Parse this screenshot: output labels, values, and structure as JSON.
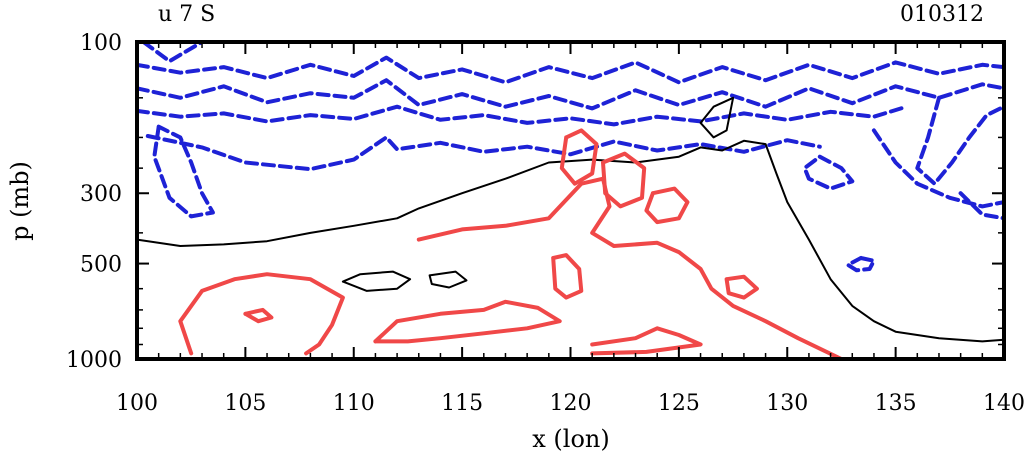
{
  "header": {
    "left_title": "u 7 S",
    "right_title": "010312"
  },
  "chart_data": {
    "type": "contour",
    "xlabel": "x (lon)",
    "ylabel": "p (mb)",
    "xlim": [
      100,
      140
    ],
    "x_ticks": [
      100,
      105,
      110,
      115,
      120,
      125,
      130,
      135,
      140
    ],
    "y_ticks": [
      100,
      300,
      500,
      1000
    ],
    "grid": false,
    "colors": {
      "positive": "#f04848",
      "negative": "#1e22d6",
      "zero": "#000000"
    },
    "contours": [
      {
        "kind": "negative",
        "points": [
          [
            100.3,
            100
          ],
          [
            101.5,
            115
          ],
          [
            103,
            100
          ]
        ]
      },
      {
        "kind": "negative",
        "points": [
          [
            100,
            118
          ],
          [
            102,
            125
          ],
          [
            104,
            120
          ],
          [
            106,
            130
          ],
          [
            108,
            118
          ],
          [
            110,
            128
          ],
          [
            111.5,
            112
          ],
          [
            113,
            130
          ],
          [
            115,
            122
          ],
          [
            117,
            134
          ],
          [
            119,
            120
          ],
          [
            121,
            130
          ],
          [
            123,
            116
          ],
          [
            125,
            134
          ],
          [
            127,
            120
          ],
          [
            129,
            132
          ],
          [
            131,
            118
          ],
          [
            133,
            130
          ],
          [
            135,
            116
          ],
          [
            137,
            126
          ],
          [
            139,
            118
          ],
          [
            140,
            120
          ]
        ]
      },
      {
        "kind": "negative",
        "points": [
          [
            100,
            140
          ],
          [
            102,
            150
          ],
          [
            104,
            138
          ],
          [
            106,
            155
          ],
          [
            108,
            145
          ],
          [
            110,
            150
          ],
          [
            111.5,
            132
          ],
          [
            113,
            158
          ],
          [
            115,
            146
          ],
          [
            117,
            160
          ],
          [
            119,
            148
          ],
          [
            121,
            162
          ],
          [
            123,
            142
          ],
          [
            125,
            158
          ],
          [
            127,
            144
          ],
          [
            129,
            160
          ],
          [
            131,
            140
          ],
          [
            133,
            156
          ],
          [
            135,
            138
          ],
          [
            137,
            150
          ],
          [
            139,
            136
          ],
          [
            140,
            140
          ]
        ]
      },
      {
        "kind": "negative",
        "points": [
          [
            100,
            165
          ],
          [
            102,
            172
          ],
          [
            104,
            168
          ],
          [
            106,
            178
          ],
          [
            108,
            170
          ],
          [
            110,
            175
          ],
          [
            112,
            160
          ],
          [
            114,
            176
          ],
          [
            116,
            170
          ],
          [
            118,
            180
          ],
          [
            120,
            174
          ],
          [
            122,
            182
          ],
          [
            124,
            172
          ],
          [
            126,
            178
          ],
          [
            128,
            168
          ],
          [
            130,
            176
          ],
          [
            132,
            166
          ],
          [
            134,
            172
          ],
          [
            135.5,
            160
          ]
        ]
      },
      {
        "kind": "negative",
        "points": [
          [
            101,
            185
          ],
          [
            100.8,
            230
          ],
          [
            101.5,
            310
          ],
          [
            102.5,
            355
          ],
          [
            103.5,
            345
          ],
          [
            103,
            300
          ],
          [
            102.5,
            240
          ],
          [
            102,
            200
          ],
          [
            101,
            185
          ]
        ]
      },
      {
        "kind": "negative",
        "points": [
          [
            100.5,
            198
          ],
          [
            103,
            215
          ],
          [
            105,
            240
          ],
          [
            108,
            252
          ],
          [
            110,
            235
          ],
          [
            111.5,
            200
          ],
          [
            112,
            218
          ],
          [
            114,
            208
          ],
          [
            116,
            222
          ],
          [
            118,
            214
          ],
          [
            120,
            226
          ],
          [
            122,
            206
          ],
          [
            124,
            220
          ],
          [
            126,
            210
          ],
          [
            128,
            222
          ],
          [
            130,
            204
          ],
          [
            131.5,
            214
          ]
        ]
      },
      {
        "kind": "negative",
        "points": [
          [
            131.5,
            230
          ],
          [
            132.5,
            250
          ],
          [
            133,
            275
          ],
          [
            132,
            290
          ],
          [
            131,
            270
          ],
          [
            130.8,
            250
          ],
          [
            131.5,
            230
          ]
        ]
      },
      {
        "kind": "negative",
        "points": [
          [
            133.4,
            480
          ],
          [
            134,
            490
          ],
          [
            133.8,
            520
          ],
          [
            133.2,
            525
          ],
          [
            132.8,
            505
          ],
          [
            133.4,
            480
          ]
        ]
      },
      {
        "kind": "negative",
        "points": [
          [
            137,
            150
          ],
          [
            136.5,
            200
          ],
          [
            136,
            250
          ],
          [
            136.8,
            280
          ],
          [
            137.6,
            240
          ],
          [
            138.4,
            200
          ],
          [
            139.2,
            170
          ],
          [
            140,
            160
          ]
        ]
      },
      {
        "kind": "negative",
        "points": [
          [
            134,
            190
          ],
          [
            135,
            240
          ],
          [
            136,
            280
          ],
          [
            137.5,
            310
          ],
          [
            139,
            330
          ],
          [
            140,
            320
          ]
        ]
      },
      {
        "kind": "negative",
        "points": [
          [
            138,
            300
          ],
          [
            139,
            350
          ],
          [
            140,
            360
          ]
        ]
      },
      {
        "kind": "zero",
        "points": [
          [
            100,
            420
          ],
          [
            102,
            440
          ],
          [
            104,
            435
          ],
          [
            106,
            425
          ],
          [
            108,
            400
          ],
          [
            110,
            380
          ],
          [
            112,
            360
          ],
          [
            113,
            335
          ],
          [
            115,
            300
          ],
          [
            117,
            270
          ],
          [
            119,
            240
          ],
          [
            121,
            235
          ],
          [
            123,
            240
          ],
          [
            125,
            230
          ],
          [
            126,
            215
          ],
          [
            127,
            220
          ],
          [
            128,
            205
          ],
          [
            129,
            210
          ],
          [
            129.5,
            260
          ],
          [
            130,
            320
          ],
          [
            131,
            420
          ],
          [
            132,
            560
          ],
          [
            133,
            680
          ],
          [
            134,
            760
          ],
          [
            135,
            820
          ],
          [
            137,
            860
          ],
          [
            139,
            880
          ],
          [
            140,
            870
          ]
        ]
      },
      {
        "kind": "zero",
        "points": [
          [
            126.6,
            160
          ],
          [
            127.5,
            150
          ],
          [
            127.2,
            190
          ],
          [
            126.6,
            200
          ],
          [
            126,
            180
          ],
          [
            126.6,
            160
          ]
        ]
      },
      {
        "kind": "zero",
        "points": [
          [
            109.5,
            570
          ],
          [
            110.3,
            540
          ],
          [
            111.8,
            530
          ],
          [
            112.6,
            560
          ],
          [
            112,
            600
          ],
          [
            110.6,
            610
          ],
          [
            109.5,
            570
          ]
        ]
      },
      {
        "kind": "zero",
        "points": [
          [
            113.5,
            545
          ],
          [
            114.7,
            530
          ],
          [
            115.2,
            565
          ],
          [
            114.4,
            595
          ],
          [
            113.6,
            580
          ],
          [
            113.5,
            545
          ]
        ]
      },
      {
        "kind": "positive",
        "points": [
          [
            102.5,
            960
          ],
          [
            102,
            760
          ],
          [
            103,
            610
          ],
          [
            104.5,
            560
          ],
          [
            106,
            540
          ],
          [
            108,
            560
          ],
          [
            109.5,
            640
          ],
          [
            109,
            780
          ],
          [
            108.4,
            900
          ],
          [
            107.8,
            960
          ]
        ]
      },
      {
        "kind": "positive",
        "points": [
          [
            105,
            720
          ],
          [
            105.8,
            700
          ],
          [
            106.2,
            740
          ],
          [
            105.6,
            760
          ],
          [
            105,
            720
          ]
        ]
      },
      {
        "kind": "positive",
        "points": [
          [
            111,
            880
          ],
          [
            112,
            760
          ],
          [
            114,
            720
          ],
          [
            116,
            700
          ],
          [
            117,
            660
          ],
          [
            118.5,
            690
          ],
          [
            119.5,
            760
          ],
          [
            118,
            800
          ],
          [
            116,
            830
          ],
          [
            114,
            860
          ],
          [
            112.5,
            880
          ],
          [
            111,
            880
          ]
        ]
      },
      {
        "kind": "positive",
        "points": [
          [
            113,
            420
          ],
          [
            115,
            390
          ],
          [
            117,
            380
          ],
          [
            119,
            360
          ],
          [
            120.5,
            280
          ],
          [
            121.5,
            270
          ],
          [
            121.8,
            330
          ],
          [
            121,
            400
          ],
          [
            122,
            440
          ],
          [
            124,
            430
          ],
          [
            125,
            460
          ],
          [
            126,
            520
          ],
          [
            126.5,
            600
          ],
          [
            127.5,
            680
          ],
          [
            129,
            760
          ],
          [
            130.5,
            860
          ],
          [
            132.5,
            1000
          ]
        ]
      },
      {
        "kind": "positive",
        "points": [
          [
            119.8,
            200
          ],
          [
            120.5,
            190
          ],
          [
            121.2,
            210
          ],
          [
            121,
            260
          ],
          [
            120.2,
            280
          ],
          [
            119.6,
            250
          ],
          [
            119.8,
            200
          ]
        ]
      },
      {
        "kind": "positive",
        "points": [
          [
            121.5,
            240
          ],
          [
            122.5,
            225
          ],
          [
            123.4,
            250
          ],
          [
            123.3,
            310
          ],
          [
            122.3,
            330
          ],
          [
            121.6,
            300
          ],
          [
            121.5,
            240
          ]
        ]
      },
      {
        "kind": "positive",
        "points": [
          [
            123.8,
            300
          ],
          [
            124.8,
            290
          ],
          [
            125.4,
            320
          ],
          [
            125,
            360
          ],
          [
            124,
            370
          ],
          [
            123.5,
            340
          ],
          [
            123.8,
            300
          ]
        ]
      },
      {
        "kind": "positive",
        "points": [
          [
            119.2,
            480
          ],
          [
            119.8,
            470
          ],
          [
            120.4,
            520
          ],
          [
            120.5,
            610
          ],
          [
            119.8,
            640
          ],
          [
            119.3,
            600
          ],
          [
            119.2,
            480
          ]
        ]
      },
      {
        "kind": "positive",
        "points": [
          [
            121,
            900
          ],
          [
            123,
            860
          ],
          [
            124,
            800
          ],
          [
            125,
            840
          ],
          [
            126,
            900
          ],
          [
            123.5,
            950
          ],
          [
            121,
            960
          ]
        ]
      },
      {
        "kind": "positive",
        "points": [
          [
            127.2,
            560
          ],
          [
            128,
            550
          ],
          [
            128.6,
            600
          ],
          [
            128,
            640
          ],
          [
            127.3,
            620
          ],
          [
            127.2,
            560
          ]
        ]
      }
    ]
  }
}
